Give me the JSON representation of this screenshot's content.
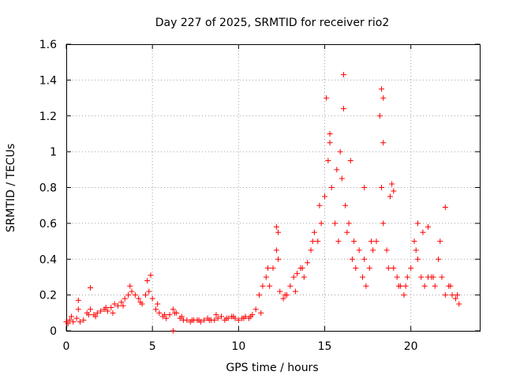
{
  "chart_data": {
    "type": "scatter",
    "title": "Day 227 of 2025, SRMTID for receiver rio2",
    "xlabel": "GPS time / hours",
    "ylabel": "SRMTID / TECUs",
    "xlim": [
      0,
      24
    ],
    "ylim": [
      0,
      1.6
    ],
    "xticks": [
      0,
      5,
      10,
      15,
      20
    ],
    "yticks": [
      0,
      0.2,
      0.4,
      0.6,
      0.8,
      1,
      1.2,
      1.4,
      1.6
    ],
    "xtick_labels": [
      "0",
      "5",
      "10",
      "15",
      "20"
    ],
    "ytick_labels": [
      "0",
      "0.2",
      "0.4",
      "0.6",
      "0.8",
      "1",
      "1.2",
      "1.4",
      "1.6"
    ],
    "grid": true,
    "marker": "+",
    "color": "#ff0000",
    "series": [
      {
        "name": "SRMTID",
        "x": [
          0.0,
          0.2,
          0.4,
          0.6,
          0.8,
          1.0,
          1.2,
          1.4,
          1.6,
          1.8,
          2.0,
          2.2,
          2.4,
          2.6,
          2.8,
          3.0,
          3.2,
          3.4,
          3.6,
          3.8,
          4.0,
          4.2,
          4.4,
          4.6,
          4.8,
          5.0,
          5.2,
          5.4,
          5.6,
          5.8,
          6.0,
          6.2,
          6.4,
          6.6,
          6.8,
          7.0,
          7.2,
          7.4,
          7.6,
          7.8,
          8.0,
          8.2,
          8.4,
          8.6,
          8.8,
          9.0,
          9.2,
          9.4,
          9.6,
          9.8,
          10.0,
          10.2,
          10.4,
          10.6,
          10.8,
          11.0,
          11.2,
          11.4,
          11.6,
          11.8,
          12.0,
          12.2,
          12.4,
          12.6,
          12.8,
          13.0,
          13.2,
          13.4,
          13.6,
          13.8,
          14.0,
          14.2,
          14.4,
          14.6,
          14.8,
          15.0,
          15.2,
          15.4,
          15.6,
          15.8,
          16.0,
          16.2,
          16.4,
          16.6,
          16.8,
          17.0,
          17.2,
          17.4,
          17.6,
          17.8,
          18.0,
          18.2,
          18.4,
          18.6,
          18.8,
          19.0,
          19.2,
          19.4,
          19.6,
          19.8,
          20.0,
          20.2,
          20.4,
          20.6,
          20.8,
          21.0,
          21.2,
          21.4,
          21.6,
          21.8,
          22.0,
          22.2,
          22.4,
          22.6,
          22.8,
          0.1,
          0.3,
          0.7,
          1.3,
          1.7,
          2.3,
          2.7,
          3.3,
          3.7,
          4.3,
          4.7,
          5.3,
          5.7,
          6.3,
          6.7,
          7.3,
          7.7,
          8.3,
          8.7,
          9.3,
          9.7,
          10.3,
          10.7,
          11.3,
          11.7,
          12.3,
          12.7,
          13.3,
          13.7,
          14.3,
          14.7,
          15.3,
          15.7,
          16.3,
          16.7,
          17.3,
          17.7,
          18.3,
          18.7,
          19.3,
          19.7,
          20.3,
          20.7,
          21.3,
          21.7,
          22.3,
          22.7,
          15.1,
          15.3,
          16.1,
          16.1,
          18.3,
          18.4,
          18.4,
          18.9,
          19.0,
          20.4,
          21.0,
          22.0,
          12.2,
          12.3,
          4.9,
          6.2,
          0.7,
          1.4,
          15.9,
          16.5,
          17.3
        ],
        "y": [
          0.05,
          0.06,
          0.05,
          0.07,
          0.05,
          0.06,
          0.1,
          0.12,
          0.09,
          0.1,
          0.11,
          0.12,
          0.11,
          0.13,
          0.15,
          0.14,
          0.16,
          0.18,
          0.2,
          0.22,
          0.2,
          0.18,
          0.15,
          0.2,
          0.22,
          0.18,
          0.12,
          0.1,
          0.08,
          0.07,
          0.09,
          0.12,
          0.1,
          0.07,
          0.06,
          0.06,
          0.05,
          0.06,
          0.06,
          0.05,
          0.06,
          0.07,
          0.06,
          0.06,
          0.07,
          0.08,
          0.06,
          0.07,
          0.08,
          0.07,
          0.06,
          0.07,
          0.08,
          0.07,
          0.09,
          0.12,
          0.2,
          0.25,
          0.3,
          0.25,
          0.35,
          0.45,
          0.22,
          0.18,
          0.2,
          0.25,
          0.3,
          0.32,
          0.35,
          0.3,
          0.38,
          0.45,
          0.55,
          0.5,
          0.6,
          0.75,
          0.95,
          0.8,
          0.6,
          0.5,
          0.85,
          0.7,
          0.6,
          0.4,
          0.35,
          0.45,
          0.3,
          0.25,
          0.35,
          0.45,
          0.5,
          1.2,
          0.6,
          0.45,
          0.75,
          0.35,
          0.3,
          0.25,
          0.2,
          0.3,
          0.35,
          0.5,
          0.4,
          0.3,
          0.25,
          0.3,
          0.3,
          0.25,
          0.4,
          0.3,
          0.2,
          0.25,
          0.2,
          0.18,
          0.15,
          0.04,
          0.08,
          0.12,
          0.09,
          0.08,
          0.13,
          0.1,
          0.14,
          0.25,
          0.16,
          0.28,
          0.15,
          0.09,
          0.1,
          0.08,
          0.06,
          0.06,
          0.06,
          0.09,
          0.07,
          0.08,
          0.07,
          0.08,
          0.1,
          0.35,
          0.4,
          0.2,
          0.22,
          0.35,
          0.5,
          0.7,
          1.05,
          0.9,
          0.55,
          0.5,
          0.4,
          0.5,
          0.8,
          0.35,
          0.25,
          0.25,
          0.45,
          0.55,
          0.3,
          0.5,
          0.25,
          0.2,
          1.3,
          1.1,
          1.43,
          1.24,
          1.35,
          1.3,
          1.05,
          0.82,
          0.78,
          0.6,
          0.58,
          0.69,
          0.58,
          0.55,
          0.31,
          0.0,
          0.17,
          0.24,
          1.0,
          0.95,
          0.8
        ]
      }
    ]
  }
}
